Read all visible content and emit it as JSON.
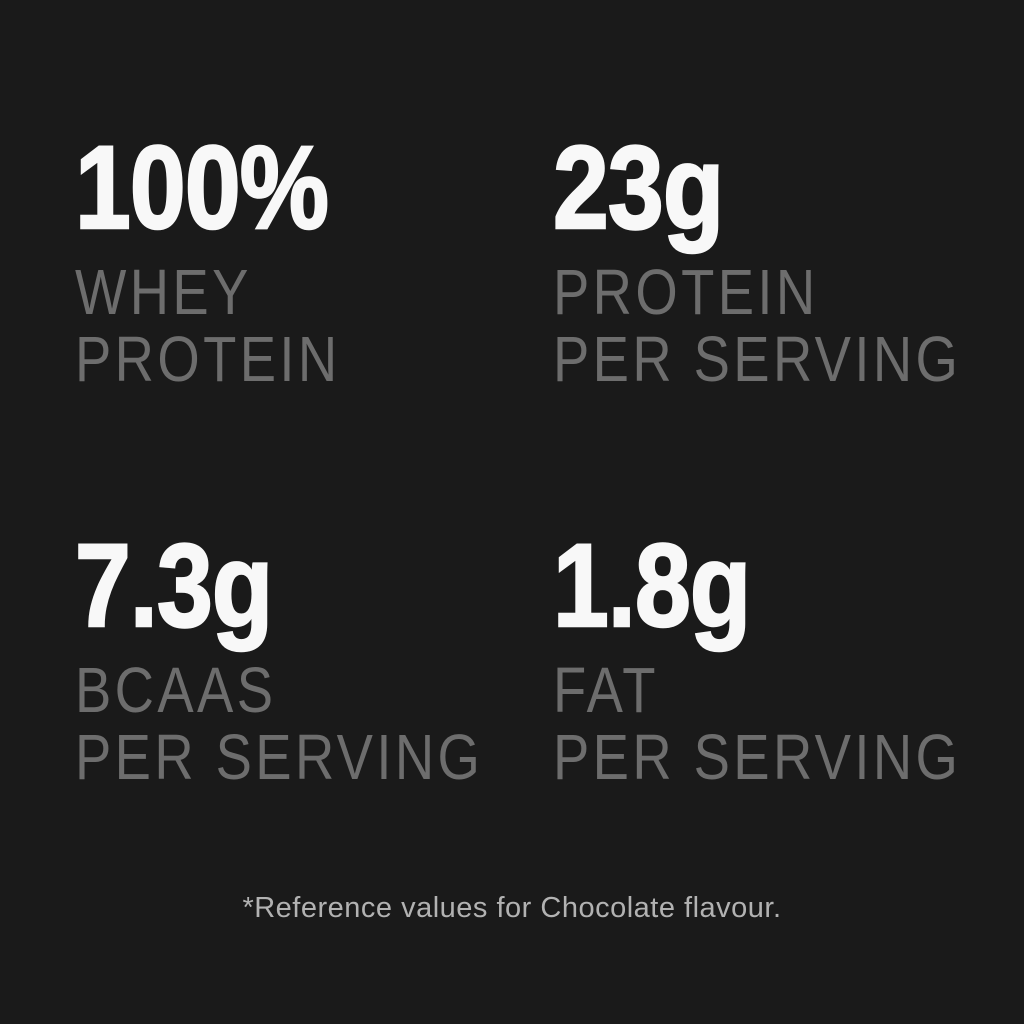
{
  "poster": {
    "background_color": "#1a1a1a",
    "value_color": "#f8f8f8",
    "label_color": "#6d6d6d",
    "footnote_color": "#b2b2b2",
    "stats": [
      {
        "value": "100%",
        "label_line1": "WHEY",
        "label_line2": "PROTEIN"
      },
      {
        "value": "23g",
        "label_line1": "PROTEIN",
        "label_line2": "PER SERVING"
      },
      {
        "value": "7.3g",
        "label_line1": "BCAAS",
        "label_line2": "PER SERVING"
      },
      {
        "value": "1.8g",
        "label_line1": "FAT",
        "label_line2": "PER SERVING"
      }
    ],
    "footnote": "*Reference values for Chocolate flavour."
  }
}
